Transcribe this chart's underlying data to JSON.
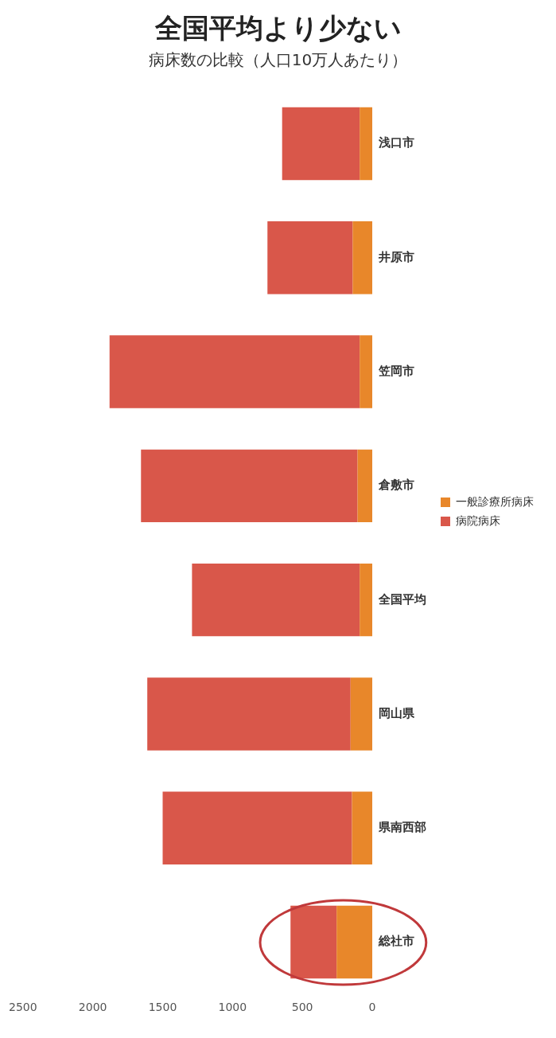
{
  "chart_data": {
    "type": "bar",
    "orientation": "horizontal",
    "stacked": true,
    "title": "全国平均より少ない",
    "subtitle": "病床数の比較（人口10万人あたり）",
    "categories": [
      "浅口市",
      "井原市",
      "笠岡市",
      "倉敷市",
      "全国平均",
      "岡山県",
      "県南西部",
      "総社市"
    ],
    "series": [
      {
        "name": "一般診療所病床",
        "color": "#e8872a",
        "values": [
          90,
          140,
          90,
          105,
          90,
          155,
          145,
          255
        ]
      },
      {
        "name": "病院病床",
        "color": "#d9574a",
        "values": [
          555,
          610,
          1790,
          1550,
          1200,
          1455,
          1355,
          330
        ]
      }
    ],
    "xlim": [
      2500,
      0
    ],
    "xticks": [
      2500,
      2000,
      1500,
      1000,
      500,
      0
    ],
    "grid": false,
    "legend": "right"
  }
}
